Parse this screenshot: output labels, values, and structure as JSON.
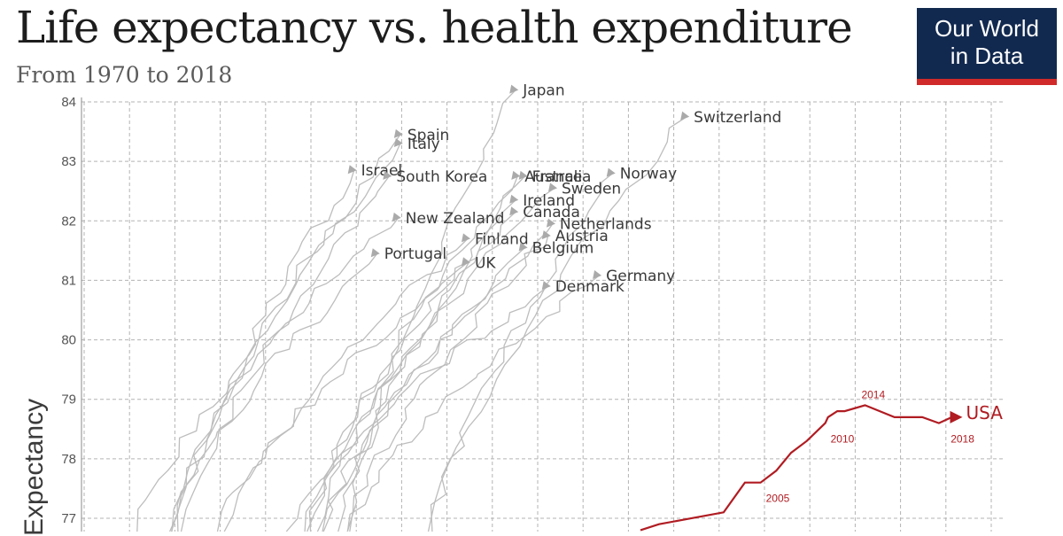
{
  "header": {
    "title": "Life expectancy vs. health expenditure",
    "subtitle": "From 1970 to 2018"
  },
  "logo": {
    "line1": "Our World",
    "line2": "in Data"
  },
  "colors": {
    "highlight": "#b01c22",
    "other": "#bdbdbd",
    "grid": "#b3b3b3",
    "logo_bg": "#12294f",
    "logo_bar": "#d02a2a"
  },
  "chart_data": {
    "type": "line",
    "title": "Life expectancy vs. health expenditure",
    "subtitle": "From 1970 to 2018",
    "ylabel": "Expectancy",
    "ylim": [
      76.8,
      84.2
    ],
    "yticks": [
      "77",
      "78",
      "79",
      "80",
      "81",
      "82",
      "83",
      "84"
    ],
    "grid": true,
    "highlight_series": {
      "name": "USA",
      "points": [
        {
          "x": 0.605,
          "y": 76.8
        },
        {
          "x": 0.625,
          "y": 76.9
        },
        {
          "x": 0.695,
          "y": 77.1
        },
        {
          "x": 0.718,
          "y": 77.6
        },
        {
          "x": 0.735,
          "y": 77.6
        },
        {
          "x": 0.752,
          "y": 77.8
        },
        {
          "x": 0.768,
          "y": 78.1
        },
        {
          "x": 0.785,
          "y": 78.3
        },
        {
          "x": 0.805,
          "y": 78.6
        },
        {
          "x": 0.808,
          "y": 78.7
        },
        {
          "x": 0.818,
          "y": 78.8
        },
        {
          "x": 0.826,
          "y": 78.8
        },
        {
          "x": 0.848,
          "y": 78.9
        },
        {
          "x": 0.88,
          "y": 78.7
        },
        {
          "x": 0.91,
          "y": 78.7
        },
        {
          "x": 0.928,
          "y": 78.6
        },
        {
          "x": 0.942,
          "y": 78.7
        }
      ],
      "year_labels": [
        {
          "text": "2005",
          "x": 0.735,
          "y": 77.6
        },
        {
          "text": "2010",
          "x": 0.805,
          "y": 78.6
        },
        {
          "text": "2014",
          "x": 0.848,
          "y": 78.9
        },
        {
          "text": "2018",
          "x": 0.935,
          "y": 78.6
        }
      ]
    },
    "countries": [
      {
        "name": "Japan",
        "end": {
          "x": 0.47,
          "y": 84.2
        }
      },
      {
        "name": "Switzerland",
        "end": {
          "x": 0.655,
          "y": 83.75
        }
      },
      {
        "name": "Spain",
        "end": {
          "x": 0.345,
          "y": 83.45
        }
      },
      {
        "name": "Italy",
        "end": {
          "x": 0.345,
          "y": 83.3
        }
      },
      {
        "name": "Israel",
        "end": {
          "x": 0.295,
          "y": 82.85
        }
      },
      {
        "name": "South Korea",
        "end": {
          "x": 0.333,
          "y": 82.75
        }
      },
      {
        "name": "Australia",
        "end": {
          "x": 0.472,
          "y": 82.75
        }
      },
      {
        "name": "France",
        "end": {
          "x": 0.48,
          "y": 82.75
        }
      },
      {
        "name": "Norway",
        "end": {
          "x": 0.575,
          "y": 82.8
        }
      },
      {
        "name": "Sweden",
        "end": {
          "x": 0.512,
          "y": 82.55
        }
      },
      {
        "name": "Ireland",
        "end": {
          "x": 0.47,
          "y": 82.35
        }
      },
      {
        "name": "Canada",
        "end": {
          "x": 0.47,
          "y": 82.15
        }
      },
      {
        "name": "New Zealand",
        "end": {
          "x": 0.343,
          "y": 82.05
        }
      },
      {
        "name": "Netherlands",
        "end": {
          "x": 0.51,
          "y": 81.95
        }
      },
      {
        "name": "Finland",
        "end": {
          "x": 0.418,
          "y": 81.7
        }
      },
      {
        "name": "Austria",
        "end": {
          "x": 0.505,
          "y": 81.75
        }
      },
      {
        "name": "Portugal",
        "end": {
          "x": 0.32,
          "y": 81.45
        }
      },
      {
        "name": "Belgium",
        "end": {
          "x": 0.48,
          "y": 81.55
        }
      },
      {
        "name": "UK",
        "end": {
          "x": 0.418,
          "y": 81.3
        }
      },
      {
        "name": "Germany",
        "end": {
          "x": 0.56,
          "y": 81.08
        }
      },
      {
        "name": "Denmark",
        "end": {
          "x": 0.505,
          "y": 80.9
        }
      }
    ]
  }
}
